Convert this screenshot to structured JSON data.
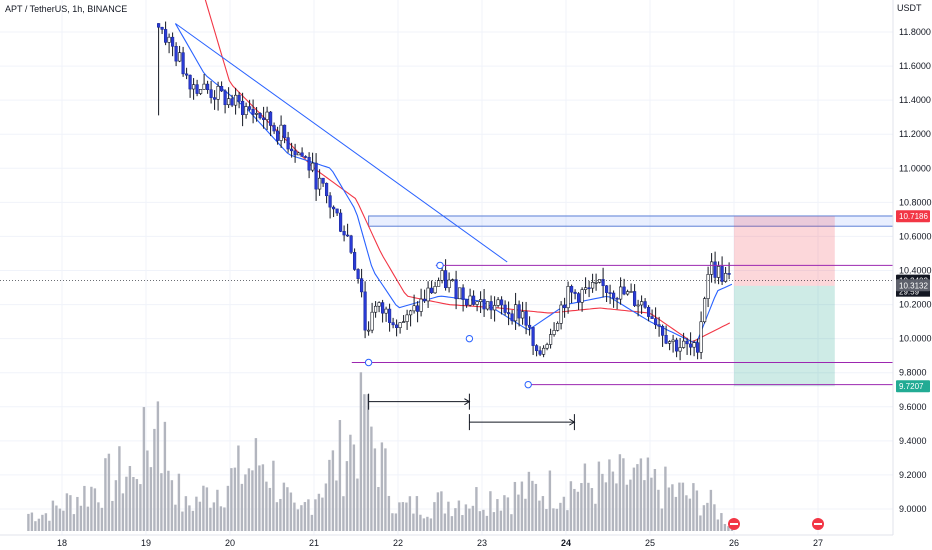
{
  "chart_data": {
    "type": "candlestick",
    "title": "APT / TetherUS, 1h, BINANCE",
    "currency": "USDT",
    "ylim": [
      8.94,
      12.02
    ],
    "y_ticks": [
      {
        "v": 11.8,
        "label": "11.8000"
      },
      {
        "v": 11.6,
        "label": "11.6000"
      },
      {
        "v": 11.4,
        "label": "11.4000"
      },
      {
        "v": 11.2,
        "label": "11.2000"
      },
      {
        "v": 11.0,
        "label": "11.0000"
      },
      {
        "v": 10.8,
        "label": "10.8000"
      },
      {
        "v": 10.6,
        "label": "10.6000"
      },
      {
        "v": 10.4,
        "label": "10.4000"
      },
      {
        "v": 10.2,
        "label": "10.2000"
      },
      {
        "v": 10.0,
        "label": "10.0000"
      },
      {
        "v": 9.8,
        "label": "9.8000"
      },
      {
        "v": 9.6,
        "label": "9.6000"
      },
      {
        "v": 9.4,
        "label": "9.4000"
      },
      {
        "v": 9.2,
        "label": "9.2000"
      },
      {
        "v": 9.0,
        "label": "9.0000"
      }
    ],
    "x_ticks": [
      {
        "day": 18,
        "label": "18",
        "bold": false
      },
      {
        "day": 19,
        "label": "19",
        "bold": false
      },
      {
        "day": 20,
        "label": "20",
        "bold": false
      },
      {
        "day": 21,
        "label": "21",
        "bold": false
      },
      {
        "day": 22,
        "label": "22",
        "bold": false
      },
      {
        "day": 23,
        "label": "23",
        "bold": false
      },
      {
        "day": 24,
        "label": "24",
        "bold": true
      },
      {
        "day": 25,
        "label": "25",
        "bold": false
      },
      {
        "day": 26,
        "label": "26",
        "bold": false
      },
      {
        "day": 27,
        "label": "27",
        "bold": false
      }
    ],
    "price_tags": [
      {
        "v": 10.7186,
        "label": "10.7186",
        "color": "#f23645"
      },
      {
        "v": 10.3403,
        "label": "10.3403",
        "color": "#131722"
      },
      {
        "v": 10.3132,
        "label": "10.3132",
        "color": "#5d606b"
      },
      {
        "v": 9.7207,
        "label": "9.7207",
        "color": "#22ab94"
      }
    ],
    "countdown": "29:59",
    "key_points": [
      {
        "day": 19.15,
        "value": 11.85
      },
      {
        "day": 19.55,
        "value": 11.5
      },
      {
        "day": 20.4,
        "value": 11.3
      },
      {
        "day": 20.9,
        "value": 11.05
      },
      {
        "day": 21.4,
        "value": 10.6
      },
      {
        "day": 21.62,
        "value": 10.2
      },
      {
        "day": 22.1,
        "value": 10.1
      },
      {
        "day": 22.5,
        "value": 10.35
      },
      {
        "day": 23.0,
        "value": 10.2
      },
      {
        "day": 23.5,
        "value": 10.15
      },
      {
        "day": 23.65,
        "value": 9.87
      },
      {
        "day": 24.0,
        "value": 10.25
      },
      {
        "day": 24.5,
        "value": 10.3
      },
      {
        "day": 24.95,
        "value": 10.2
      },
      {
        "day": 25.25,
        "value": 9.98
      },
      {
        "day": 25.55,
        "value": 9.92
      },
      {
        "day": 25.7,
        "value": 10.43
      },
      {
        "day": 25.98,
        "value": 10.33
      }
    ],
    "volume_key_points": [
      {
        "day": 17.8,
        "value": 0.6
      },
      {
        "day": 18.85,
        "value": 2.2
      },
      {
        "day": 19.15,
        "value": 3.6
      },
      {
        "day": 19.45,
        "value": 0.8
      },
      {
        "day": 20.4,
        "value": 2.5
      },
      {
        "day": 20.8,
        "value": 0.5
      },
      {
        "day": 21.62,
        "value": 3.8
      },
      {
        "day": 22.0,
        "value": 0.8
      },
      {
        "day": 23.6,
        "value": 1.4
      },
      {
        "day": 24.8,
        "value": 1.8
      },
      {
        "day": 25.7,
        "value": 1.0
      },
      {
        "day": 25.95,
        "value": 0.2
      }
    ],
    "ema_fast": [
      {
        "day": 19.35,
        "value": 11.85
      },
      {
        "day": 19.7,
        "value": 11.55
      },
      {
        "day": 20.2,
        "value": 11.35
      },
      {
        "day": 20.7,
        "value": 11.08
      },
      {
        "day": 21.2,
        "value": 11.0
      },
      {
        "day": 21.5,
        "value": 10.75
      },
      {
        "day": 21.7,
        "value": 10.4
      },
      {
        "day": 22.0,
        "value": 10.18
      },
      {
        "day": 22.5,
        "value": 10.25
      },
      {
        "day": 23.0,
        "value": 10.22
      },
      {
        "day": 23.55,
        "value": 10.05
      },
      {
        "day": 24.0,
        "value": 10.2
      },
      {
        "day": 24.5,
        "value": 10.25
      },
      {
        "day": 25.0,
        "value": 10.1
      },
      {
        "day": 25.55,
        "value": 9.97
      },
      {
        "day": 25.8,
        "value": 10.28
      },
      {
        "day": 25.98,
        "value": 10.32
      }
    ],
    "ema_slow": [
      {
        "day": 19.7,
        "value": 12.0
      },
      {
        "day": 20.0,
        "value": 11.5
      },
      {
        "day": 20.5,
        "value": 11.25
      },
      {
        "day": 21.0,
        "value": 11.0
      },
      {
        "day": 21.5,
        "value": 10.82
      },
      {
        "day": 21.8,
        "value": 10.5
      },
      {
        "day": 22.1,
        "value": 10.25
      },
      {
        "day": 22.6,
        "value": 10.2
      },
      {
        "day": 23.2,
        "value": 10.18
      },
      {
        "day": 23.8,
        "value": 10.15
      },
      {
        "day": 24.4,
        "value": 10.18
      },
      {
        "day": 25.0,
        "value": 10.15
      },
      {
        "day": 25.5,
        "value": 9.98
      },
      {
        "day": 25.98,
        "value": 10.1
      }
    ],
    "annotations": {
      "resistance_box": {
        "day_from": 21.65,
        "top": 10.72,
        "bottom": 10.66
      },
      "short_position": {
        "day_from": 26.0,
        "day_to": 27.2,
        "entry": 10.31,
        "stop": 10.7186,
        "target": 9.7207
      },
      "trendline": {
        "from": {
          "day": 19.35,
          "value": 11.85
        },
        "to": {
          "day": 23.3,
          "value": 10.45
        }
      },
      "range_lines": [
        {
          "day_from": 22.45,
          "day_to": 26.1,
          "value": 10.43
        },
        {
          "day_from": 21.45,
          "day_to": 26.1,
          "value": 9.86
        },
        {
          "day_from": 23.55,
          "day_to": 26.1,
          "value": 9.73
        }
      ],
      "measure_arrows": [
        {
          "day_from": 21.65,
          "day_to": 22.85,
          "value": 9.63
        },
        {
          "day_from": 22.85,
          "day_to": 24.1,
          "value": 9.51
        }
      ],
      "pivot_markers": [
        {
          "day": 21.65,
          "value": 9.86
        },
        {
          "day": 22.5,
          "value": 10.43
        },
        {
          "day": 22.85,
          "value": 10.0
        },
        {
          "day": 23.55,
          "value": 9.73
        }
      ],
      "event_icons": [
        26.0,
        27.0
      ]
    }
  }
}
